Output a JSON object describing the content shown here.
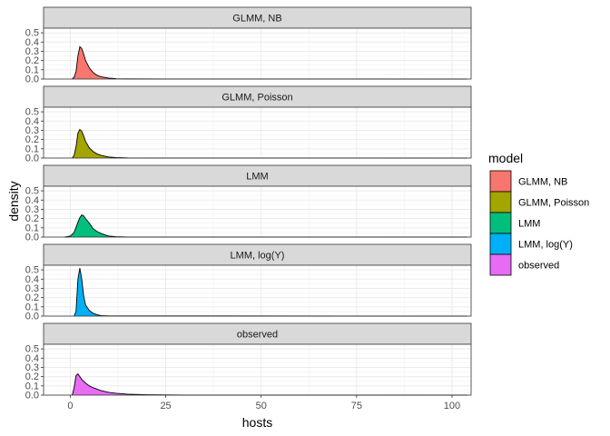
{
  "chart_data": {
    "type": "area",
    "subtype": "density",
    "xlabel": "hosts",
    "ylabel": "density",
    "xlim": [
      -7,
      105
    ],
    "ylim": [
      0,
      0.55
    ],
    "x_ticks": [
      0,
      25,
      50,
      75,
      100
    ],
    "x_tick_labels": [
      "0",
      "25",
      "50",
      "75",
      "100"
    ],
    "y_ticks": [
      0,
      0.1,
      0.2,
      0.3,
      0.4,
      0.5
    ],
    "y_tick_labels": [
      "0.0",
      "0.1",
      "0.2",
      "0.3",
      "0.4",
      "0.5"
    ],
    "grid": true,
    "legend": {
      "title": "model",
      "position": "right"
    },
    "series": [
      {
        "name": "GLMM, NB",
        "color": "#F8766D",
        "points": [
          [
            0.5,
            0
          ],
          [
            1,
            0.02
          ],
          [
            1.5,
            0.08
          ],
          [
            2,
            0.25
          ],
          [
            2.5,
            0.35
          ],
          [
            3,
            0.33
          ],
          [
            3.5,
            0.27
          ],
          [
            4,
            0.2
          ],
          [
            5,
            0.12
          ],
          [
            6,
            0.07
          ],
          [
            7,
            0.04
          ],
          [
            8,
            0.025
          ],
          [
            10,
            0.01
          ],
          [
            12,
            0.004
          ],
          [
            15,
            0.002
          ],
          [
            25,
            0.001
          ],
          [
            104,
            0
          ]
        ]
      },
      {
        "name": "GLMM, Poisson",
        "color": "#A3A500",
        "points": [
          [
            0.5,
            0
          ],
          [
            1,
            0.03
          ],
          [
            1.5,
            0.12
          ],
          [
            2,
            0.27
          ],
          [
            2.5,
            0.31
          ],
          [
            3,
            0.29
          ],
          [
            3.5,
            0.24
          ],
          [
            4,
            0.18
          ],
          [
            5,
            0.11
          ],
          [
            6,
            0.07
          ],
          [
            7,
            0.045
          ],
          [
            8,
            0.03
          ],
          [
            10,
            0.012
          ],
          [
            12,
            0.005
          ],
          [
            15,
            0.002
          ],
          [
            25,
            0.001
          ],
          [
            104,
            0
          ]
        ]
      },
      {
        "name": "LMM",
        "color": "#00BF7D",
        "points": [
          [
            -1.5,
            0
          ],
          [
            0,
            0.01
          ],
          [
            1,
            0.05
          ],
          [
            2,
            0.16
          ],
          [
            2.5,
            0.21
          ],
          [
            3,
            0.24
          ],
          [
            3.5,
            0.23
          ],
          [
            4,
            0.2
          ],
          [
            5,
            0.15
          ],
          [
            6,
            0.09
          ],
          [
            7,
            0.06
          ],
          [
            8,
            0.04
          ],
          [
            9,
            0.025
          ],
          [
            10,
            0.012
          ],
          [
            12,
            0.004
          ],
          [
            15,
            0.001
          ],
          [
            104,
            0
          ]
        ]
      },
      {
        "name": "LMM, log(Y)",
        "color": "#00B0F6",
        "points": [
          [
            1,
            0
          ],
          [
            1.5,
            0.05
          ],
          [
            2,
            0.4
          ],
          [
            2.5,
            0.52
          ],
          [
            3,
            0.4
          ],
          [
            3.5,
            0.22
          ],
          [
            4,
            0.12
          ],
          [
            5,
            0.06
          ],
          [
            6,
            0.03
          ],
          [
            7,
            0.015
          ],
          [
            8,
            0.006
          ],
          [
            10,
            0.002
          ],
          [
            104,
            0
          ]
        ]
      },
      {
        "name": "observed",
        "color": "#E76BF3",
        "points": [
          [
            0.5,
            0
          ],
          [
            1,
            0.08
          ],
          [
            1.5,
            0.21
          ],
          [
            2,
            0.23
          ],
          [
            2.5,
            0.2
          ],
          [
            3,
            0.17
          ],
          [
            4,
            0.13
          ],
          [
            5,
            0.1
          ],
          [
            6,
            0.08
          ],
          [
            8,
            0.05
          ],
          [
            10,
            0.03
          ],
          [
            12,
            0.02
          ],
          [
            15,
            0.01
          ],
          [
            20,
            0.004
          ],
          [
            30,
            0.001
          ],
          [
            104,
            0
          ]
        ]
      }
    ]
  }
}
